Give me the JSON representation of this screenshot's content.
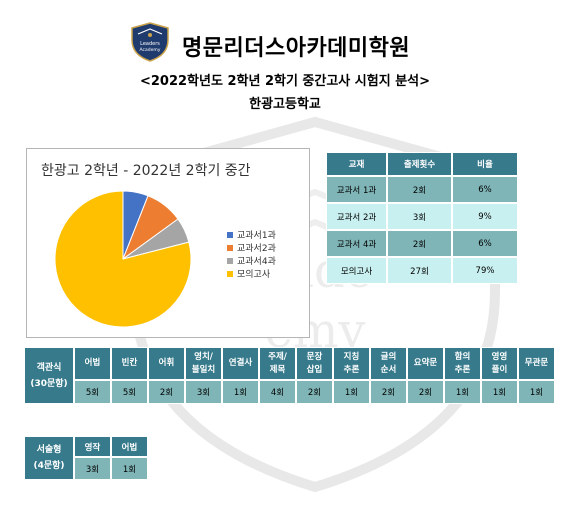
{
  "header": {
    "academy_name": "명문리더스아카데미학원",
    "logo_text_line1": "Leaders",
    "logo_text_line2": "Academy",
    "exam_title": "<2022학년도 2학년 2학기 중간고사 시험지 분석>",
    "school": "한광고등학교"
  },
  "chart_data": {
    "type": "pie",
    "title": "한광고 2학년 - 2022년 2학기 중간",
    "categories": [
      "교과서1과",
      "교과서2과",
      "교과서4과",
      "모의고사"
    ],
    "values": [
      6,
      9,
      6,
      79
    ],
    "colors": [
      "#4472c4",
      "#ed7d31",
      "#a5a5a5",
      "#ffc000"
    ],
    "legend": "right"
  },
  "stats_table": {
    "headers": [
      "교재",
      "출제횟수",
      "비율"
    ],
    "rows": [
      [
        "교과서 1과",
        "2회",
        "6%"
      ],
      [
        "교과서 2과",
        "3회",
        "9%"
      ],
      [
        "교과서 4과",
        "2회",
        "6%"
      ],
      [
        "모의고사",
        "27회",
        "79%"
      ]
    ]
  },
  "objective_table": {
    "label_line1": "객관식",
    "label_line2": "(30문항)",
    "headers": [
      [
        "어법"
      ],
      [
        "빈칸"
      ],
      [
        "어휘"
      ],
      [
        "영치/",
        "불일치"
      ],
      [
        "연결사"
      ],
      [
        "주제/",
        "제목"
      ],
      [
        "문장",
        "삽입"
      ],
      [
        "지칭",
        "추론"
      ],
      [
        "글의",
        "순서"
      ],
      [
        "요약문"
      ],
      [
        "함의",
        "추론"
      ],
      [
        "영영",
        "풀이"
      ],
      [
        "무관문"
      ]
    ],
    "values": [
      "5회",
      "5회",
      "2회",
      "3회",
      "1회",
      "4회",
      "2회",
      "1회",
      "2회",
      "2회",
      "1회",
      "1회",
      "1회"
    ]
  },
  "essay_table": {
    "label_line1": "서술형",
    "label_line2": "(4문항)",
    "headers": [
      "영작",
      "어법"
    ],
    "values": [
      "3회",
      "1회"
    ]
  }
}
